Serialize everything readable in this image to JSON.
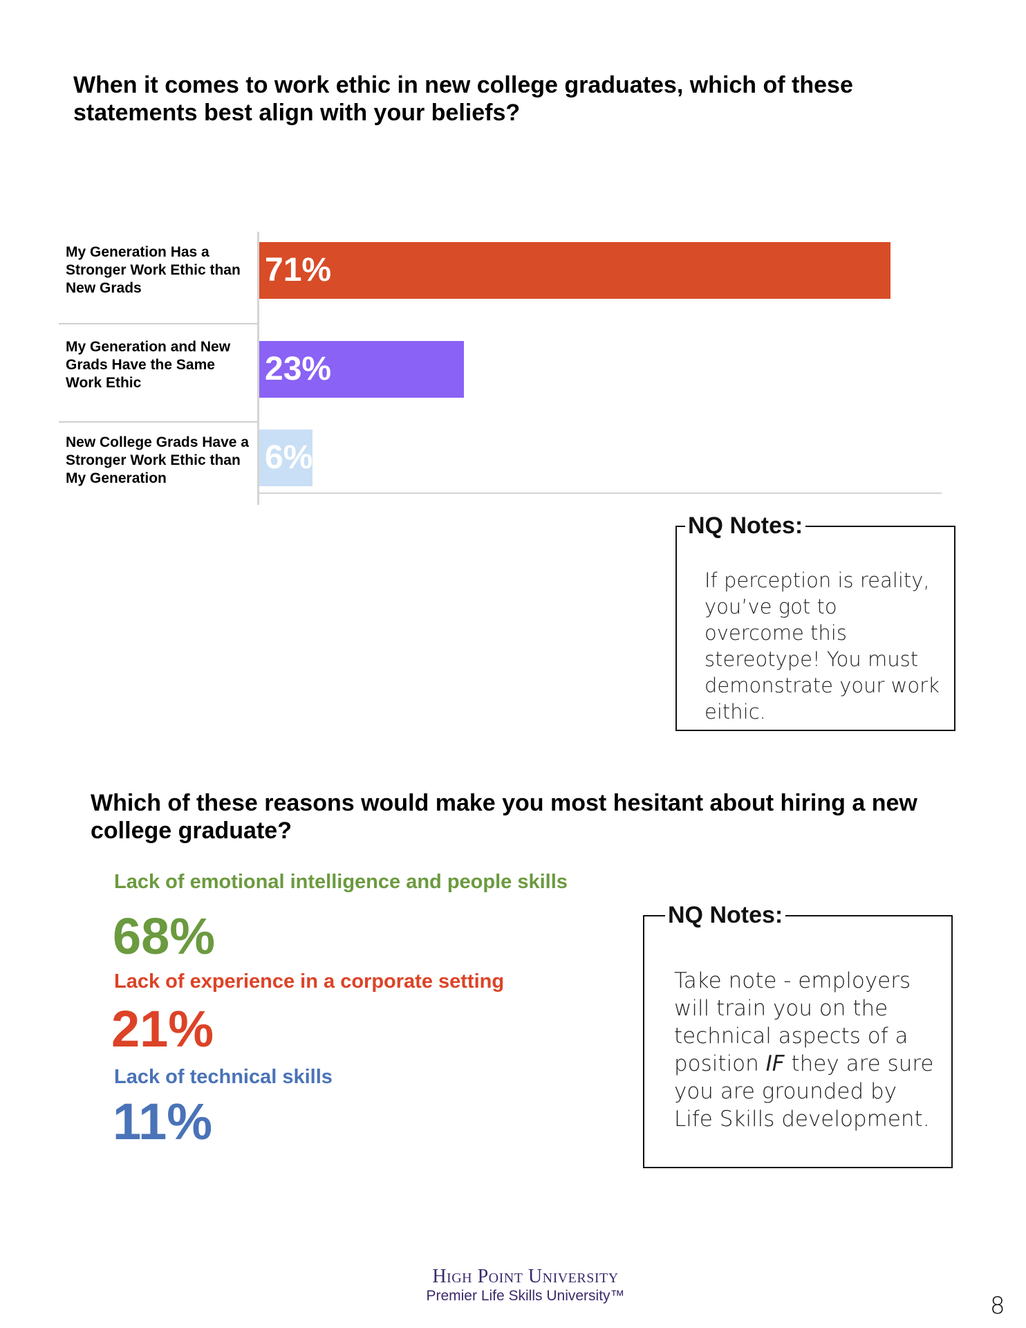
{
  "question1": {
    "title": "When it comes to work ethic in new college graduates, which of these statements best align with your beliefs?"
  },
  "chart_data": {
    "type": "bar",
    "orientation": "horizontal",
    "categories": [
      "My Generation Has a Stronger Work Ethic than New Grads",
      "My Generation and New Grads Have the Same Work Ethic",
      "New College Grads Have a Stronger Work Ethic than My Generation"
    ],
    "values": [
      71,
      23,
      6
    ],
    "value_labels": [
      "71%",
      "23%",
      "6%"
    ],
    "colors": [
      "#d84c27",
      "#8a62f5",
      "#c9dff5"
    ],
    "xlim": [
      0,
      77
    ],
    "unit": "%"
  },
  "notes1": {
    "title": "NQ Notes:",
    "text": "If perception is reality, you’ve got to overcome this stereotype! You must demonstrate your work eithic."
  },
  "question2": {
    "title": "Which of these reasons would make you most hesitant about hiring a new college graduate?",
    "reasons": [
      {
        "label": "Lack of emotional intelligence and people skills",
        "value": "68%",
        "color": "#6b9a3f"
      },
      {
        "label": "Lack of experience in a corporate setting",
        "value": "21%",
        "color": "#dc4327"
      },
      {
        "label": "Lack of technical skills",
        "value": "11%",
        "color": "#4a73b8"
      }
    ]
  },
  "notes2": {
    "title": "NQ Notes:",
    "text_before": "Take note - employers will train you on the technical aspects of a position ",
    "text_emphasis": "IF",
    "text_after": " they are sure you are grounded by Life Skills development."
  },
  "footer": {
    "name": "High Point University",
    "tagline": "Premier Life Skills University™"
  },
  "page_number": "8"
}
